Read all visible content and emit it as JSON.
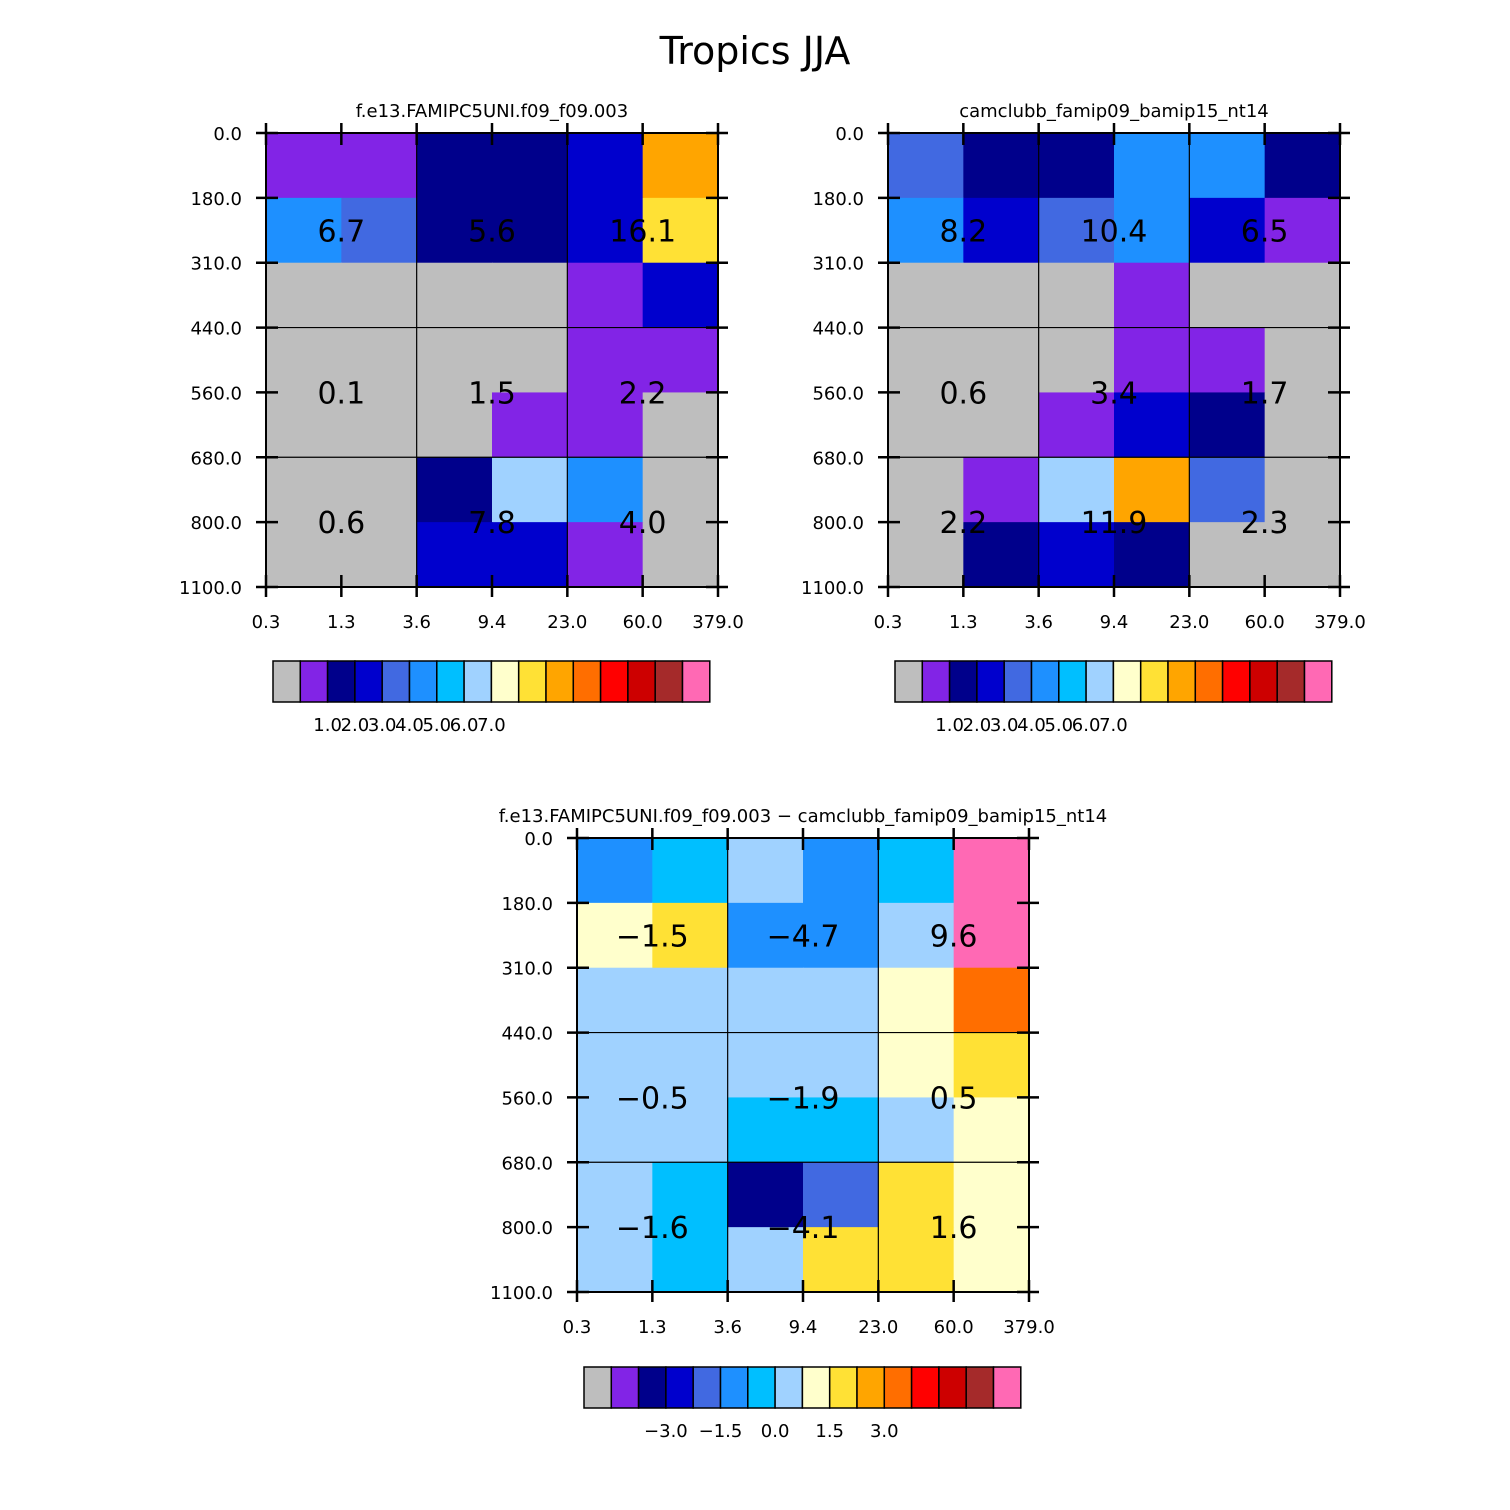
{
  "title": "Tropics JJA",
  "palette": [
    "#bebebe",
    "#8224e6",
    "#00008b",
    "#0000cd",
    "#4169e1",
    "#1e90ff",
    "#00bfff",
    "#a0d2ff",
    "#ffffcc",
    "#ffe135",
    "#ffa500",
    "#ff6e00",
    "#ff0000",
    "#cd0000",
    "#a52a2a",
    "#ff69b4"
  ],
  "chart_data": [
    {
      "type": "heatmap",
      "title": "f.e13.FAMIPC5UNI.f09_f09.003",
      "x_ticks": [
        "0.3",
        "1.3",
        "3.6",
        "9.4",
        "23.0",
        "60.0",
        "379.0"
      ],
      "y_ticks": [
        "0.0",
        "180.0",
        "310.0",
        "440.0",
        "560.0",
        "680.0",
        "800.0",
        "1100.0"
      ],
      "cells": [
        [
          1,
          1,
          2,
          2,
          3,
          10
        ],
        [
          5,
          4,
          2,
          2,
          3,
          9
        ],
        [
          0,
          0,
          0,
          0,
          1,
          3
        ],
        [
          0,
          0,
          0,
          0,
          1,
          1
        ],
        [
          0,
          0,
          0,
          1,
          1,
          0
        ],
        [
          0,
          0,
          2,
          7,
          5,
          0
        ],
        [
          0,
          0,
          3,
          3,
          1,
          0
        ]
      ],
      "group_labels": [
        [
          "6.7",
          "5.6",
          "16.1"
        ],
        [
          "0.1",
          "1.5",
          "2.2"
        ],
        [
          "0.6",
          "7.8",
          "4.0"
        ]
      ],
      "colorbar_ticks": [
        "1.0",
        "2.0",
        "3.0",
        "4.0",
        "5.0",
        "6.0",
        "7.0"
      ]
    },
    {
      "type": "heatmap",
      "title": "camclubb_famip09_bamip15_nt14",
      "x_ticks": [
        "0.3",
        "1.3",
        "3.6",
        "9.4",
        "23.0",
        "60.0",
        "379.0"
      ],
      "y_ticks": [
        "0.0",
        "180.0",
        "310.0",
        "440.0",
        "560.0",
        "680.0",
        "800.0",
        "1100.0"
      ],
      "cells": [
        [
          4,
          2,
          2,
          5,
          5,
          2
        ],
        [
          5,
          3,
          4,
          5,
          3,
          1
        ],
        [
          0,
          0,
          0,
          1,
          0,
          0
        ],
        [
          0,
          0,
          0,
          1,
          1,
          0
        ],
        [
          0,
          0,
          1,
          3,
          2,
          0
        ],
        [
          0,
          1,
          7,
          10,
          4,
          0
        ],
        [
          0,
          2,
          3,
          2,
          0,
          0
        ]
      ],
      "group_labels": [
        [
          "8.2",
          "10.4",
          "6.5"
        ],
        [
          "0.6",
          "3.4",
          "1.7"
        ],
        [
          "2.2",
          "11.9",
          "2.3"
        ]
      ],
      "colorbar_ticks": [
        "1.0",
        "2.0",
        "3.0",
        "4.0",
        "5.0",
        "6.0",
        "7.0"
      ]
    },
    {
      "type": "heatmap",
      "title": "f.e13.FAMIPC5UNI.f09_f09.003 - camclubb_famip09_bamip15_nt14",
      "x_ticks": [
        "0.3",
        "1.3",
        "3.6",
        "9.4",
        "23.0",
        "60.0",
        "379.0"
      ],
      "y_ticks": [
        "0.0",
        "180.0",
        "310.0",
        "440.0",
        "560.0",
        "680.0",
        "800.0",
        "1100.0"
      ],
      "cells": [
        [
          5,
          6,
          7,
          5,
          6,
          15
        ],
        [
          8,
          9,
          5,
          5,
          7,
          15
        ],
        [
          7,
          7,
          7,
          7,
          8,
          11
        ],
        [
          7,
          7,
          7,
          7,
          8,
          9
        ],
        [
          7,
          7,
          6,
          6,
          7,
          8
        ],
        [
          7,
          6,
          2,
          4,
          9,
          8
        ],
        [
          7,
          6,
          7,
          9,
          9,
          8
        ]
      ],
      "group_labels": [
        [
          "-1.5",
          "-4.7",
          "9.6"
        ],
        [
          "-0.5",
          "-1.9",
          "0.5"
        ],
        [
          "-1.6",
          "-4.1",
          "1.6"
        ]
      ],
      "colorbar_ticks": [
        "-3.0",
        "-1.5",
        "0.0",
        "1.5",
        "3.0"
      ]
    }
  ]
}
